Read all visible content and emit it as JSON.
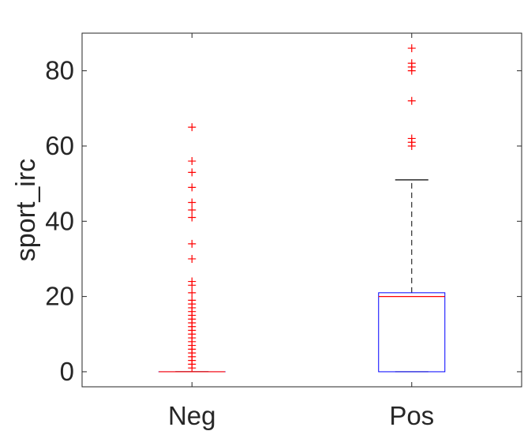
{
  "chart_data": {
    "type": "boxplot",
    "ylabel": "sport_irc",
    "xlabel": "",
    "title": "",
    "categories": [
      "Neg",
      "Pos"
    ],
    "ylim": [
      -4,
      90
    ],
    "yticks": [
      0,
      20,
      40,
      60,
      80
    ],
    "yticklabels": [
      "0",
      "20",
      "40",
      "60",
      "80"
    ],
    "grid": false,
    "boxes": [
      {
        "name": "Neg",
        "whisker_low": 0,
        "q1": 0,
        "median": 0,
        "q3": 0,
        "whisker_high": 0,
        "outliers": [
          1,
          2,
          3,
          4,
          5,
          6,
          7,
          8,
          9,
          10,
          11,
          12,
          13,
          14,
          15,
          16,
          17,
          18,
          19,
          21,
          23,
          24,
          30,
          34,
          41,
          43,
          45,
          49,
          53,
          56,
          65
        ]
      },
      {
        "name": "Pos",
        "whisker_low": 0,
        "q1": 0,
        "median": 20,
        "q3": 21,
        "whisker_high": 51,
        "outliers": [
          60,
          61,
          62,
          72,
          80,
          81,
          82,
          86
        ]
      }
    ],
    "colors": {
      "box": "#0000ff",
      "median": "#ff0000",
      "whisker": "#000000",
      "outlier": "#ff0000",
      "axis": "#262626"
    }
  }
}
